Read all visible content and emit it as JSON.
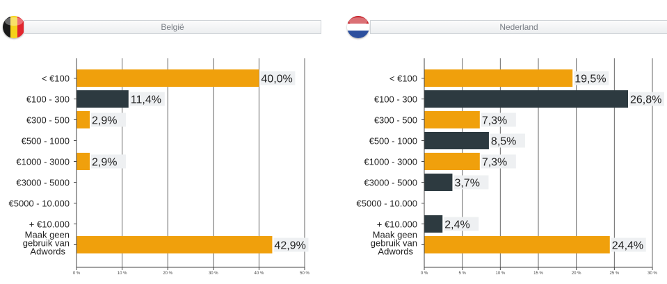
{
  "panels": [
    {
      "title": "België",
      "flag": {
        "name": "belgium-flag-icon",
        "colors": [
          "#1a1a1a",
          "#f5d21a",
          "#e2262e"
        ]
      }
    },
    {
      "title": "Nederland",
      "flag": {
        "name": "netherlands-flag-icon",
        "colors": [
          "#c8242c",
          "#ffffff",
          "#2c4f9e"
        ]
      }
    }
  ],
  "colors": {
    "orange": "#f0a00c",
    "dark": "#2d3a40",
    "axis": "#555555",
    "label_bg": "#eef0f2"
  },
  "chart_data": [
    {
      "type": "bar",
      "orientation": "horizontal",
      "title": "België",
      "categories": [
        "< €100",
        "€100 - 300",
        "€300 - 500",
        "€500 - 1000",
        "€1000 - 3000",
        "€3000 - 5000",
        "€5000 - 10.000",
        "+ €10.000",
        "Maak geen gebruik van Adwords"
      ],
      "values": [
        40.0,
        11.4,
        2.9,
        0,
        2.9,
        0,
        0,
        0,
        42.9
      ],
      "value_labels": [
        "40,0%",
        "11,4%",
        "2,9%",
        "",
        "2,9%",
        "",
        "",
        "",
        "42,9%"
      ],
      "bar_colors": [
        "orange",
        "dark",
        "orange",
        "orange",
        "orange",
        "orange",
        "orange",
        "orange",
        "orange"
      ],
      "xlim": [
        0,
        50
      ],
      "xticks": [
        0,
        10,
        20,
        30,
        40,
        50
      ],
      "xtick_labels": [
        "0 %",
        "10 %",
        "20 %",
        "30 %",
        "40 %",
        "50 %"
      ],
      "grid": true
    },
    {
      "type": "bar",
      "orientation": "horizontal",
      "title": "Nederland",
      "categories": [
        "< €100",
        "€100 - 300",
        "€300 - 500",
        "€500 - 1000",
        "€1000 - 3000",
        "€3000 - 5000",
        "€5000 - 10.000",
        "+ €10.000",
        "Maak geen gebruik van Adwords"
      ],
      "values": [
        19.5,
        26.8,
        7.3,
        8.5,
        7.3,
        3.7,
        0,
        2.4,
        24.4
      ],
      "value_labels": [
        "19,5%",
        "26,8%",
        "7,3%",
        "8,5%",
        "7,3%",
        "3,7%",
        "",
        "2,4%",
        "24,4%"
      ],
      "bar_colors": [
        "orange",
        "dark",
        "orange",
        "dark",
        "orange",
        "dark",
        "orange",
        "dark",
        "orange"
      ],
      "xlim": [
        0,
        30
      ],
      "xticks": [
        0,
        5,
        10,
        15,
        20,
        25,
        30
      ],
      "xtick_labels": [
        "0 %",
        "5 %",
        "10 %",
        "15 %",
        "20 %",
        "25 %",
        "30 %"
      ],
      "grid": true
    }
  ]
}
